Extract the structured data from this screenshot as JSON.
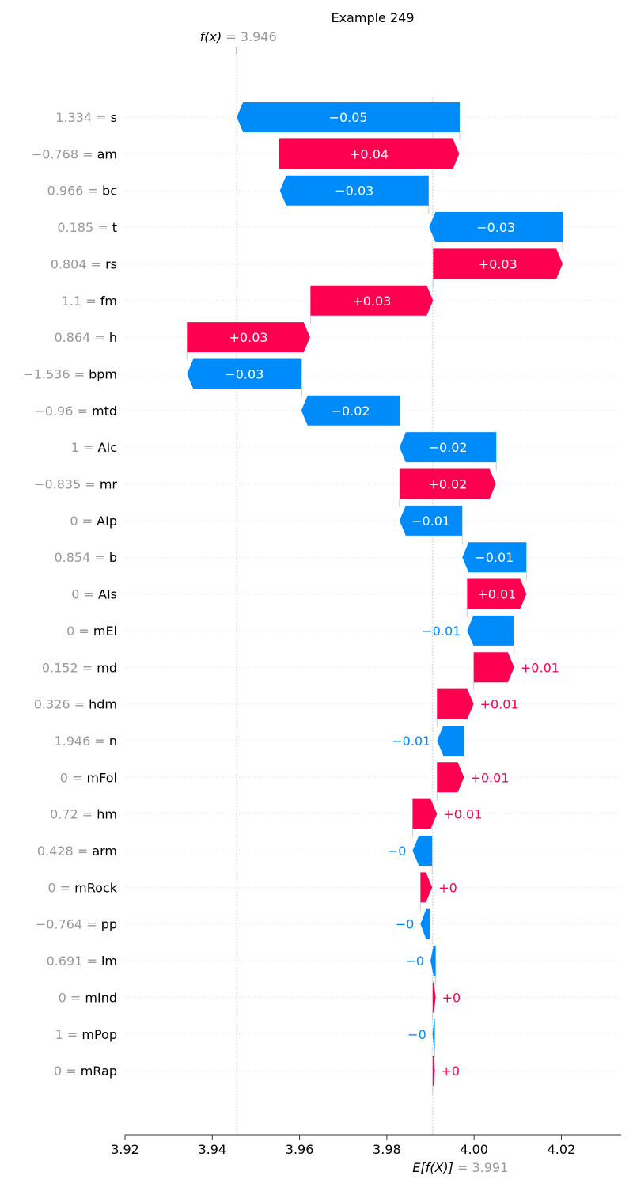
{
  "chart_data": {
    "type": "waterfall",
    "title": "Example 249",
    "fx": {
      "label": "f(x)",
      "eq": " = ",
      "value": "3.946",
      "x": 3.9456
    },
    "efx": {
      "label": "E[f(X)]",
      "eq": " = ",
      "value": "3.991",
      "x": 3.9905
    },
    "xlim": [
      3.92,
      4.0337
    ],
    "x_ticks": [
      {
        "value": 3.92,
        "label": "3.92"
      },
      {
        "value": 3.94,
        "label": "3.94"
      },
      {
        "value": 3.96,
        "label": "3.96"
      },
      {
        "value": 3.98,
        "label": "3.98"
      },
      {
        "value": 4.0,
        "label": "4.00"
      },
      {
        "value": 4.02,
        "label": "4.02"
      }
    ],
    "colors": {
      "positive": "#ff0051",
      "negative": "#008bfb",
      "feature_value": "#999999",
      "feature_name": "#000000",
      "grid": "#cccccc",
      "axis": "#333333"
    },
    "rows": [
      {
        "feature_value": "1.334",
        "feature": "s",
        "start": 3.9967,
        "end": 3.9456,
        "label": "−0.05"
      },
      {
        "feature_value": "−0.768",
        "feature": "am",
        "start": 3.9553,
        "end": 3.9966,
        "label": "+0.04"
      },
      {
        "feature_value": "0.966",
        "feature": "bc",
        "start": 3.9896,
        "end": 3.9555,
        "label": "−0.03"
      },
      {
        "feature_value": "0.185",
        "feature": "t",
        "start": 4.0203,
        "end": 3.9897,
        "label": "−0.03"
      },
      {
        "feature_value": "0.804",
        "feature": "rs",
        "start": 3.9906,
        "end": 4.0203,
        "label": "+0.03"
      },
      {
        "feature_value": "1.1",
        "feature": "fm",
        "start": 3.9625,
        "end": 3.9906,
        "label": "+0.03"
      },
      {
        "feature_value": "0.864",
        "feature": "h",
        "start": 3.9342,
        "end": 3.9624,
        "label": "+0.03"
      },
      {
        "feature_value": "−1.536",
        "feature": "bpm",
        "start": 3.9605,
        "end": 3.9342,
        "label": "−0.03"
      },
      {
        "feature_value": "−0.96",
        "feature": "mtd",
        "start": 3.983,
        "end": 3.9604,
        "label": "−0.02"
      },
      {
        "feature_value": "1",
        "feature": "AIc",
        "start": 4.0051,
        "end": 3.9829,
        "label": "−0.02"
      },
      {
        "feature_value": "−0.835",
        "feature": "mr",
        "start": 3.9829,
        "end": 4.005,
        "label": "+0.02"
      },
      {
        "feature_value": "0",
        "feature": "AIp",
        "start": 3.9973,
        "end": 3.9829,
        "label": "−0.01"
      },
      {
        "feature_value": "0.854",
        "feature": "b",
        "start": 4.012,
        "end": 3.9973,
        "label": "−0.01"
      },
      {
        "feature_value": "0",
        "feature": "AIs",
        "start": 3.9984,
        "end": 4.012,
        "label": "+0.01"
      },
      {
        "feature_value": "0",
        "feature": "mEl",
        "start": 4.0092,
        "end": 3.9984,
        "label": "−0.01"
      },
      {
        "feature_value": "0.152",
        "feature": "md",
        "start": 3.9999,
        "end": 4.0092,
        "label": "+0.01"
      },
      {
        "feature_value": "0.326",
        "feature": "hdm",
        "start": 3.9915,
        "end": 3.9999,
        "label": "+0.01"
      },
      {
        "feature_value": "1.946",
        "feature": "n",
        "start": 3.9977,
        "end": 3.9915,
        "label": "−0.01"
      },
      {
        "feature_value": "0",
        "feature": "mFol",
        "start": 3.9915,
        "end": 3.9977,
        "label": "+0.01"
      },
      {
        "feature_value": "0.72",
        "feature": "hm",
        "start": 3.9859,
        "end": 3.9915,
        "label": "+0.01"
      },
      {
        "feature_value": "0.428",
        "feature": "arm",
        "start": 3.9904,
        "end": 3.9859,
        "label": "−0"
      },
      {
        "feature_value": "0",
        "feature": "mRock",
        "start": 3.9877,
        "end": 3.9904,
        "label": "+0"
      },
      {
        "feature_value": "−0.764",
        "feature": "pp",
        "start": 3.9899,
        "end": 3.9877,
        "label": "−0"
      },
      {
        "feature_value": "0.691",
        "feature": "lm",
        "start": 3.9912,
        "end": 3.99,
        "label": "−0"
      },
      {
        "feature_value": "0",
        "feature": "mInd",
        "start": 3.9905,
        "end": 3.9912,
        "label": "+0"
      },
      {
        "feature_value": "1",
        "feature": "mPop",
        "start": 3.991,
        "end": 3.9905,
        "label": "−0"
      },
      {
        "feature_value": "0",
        "feature": "mRap",
        "start": 3.9905,
        "end": 3.991,
        "label": "+0"
      }
    ]
  }
}
